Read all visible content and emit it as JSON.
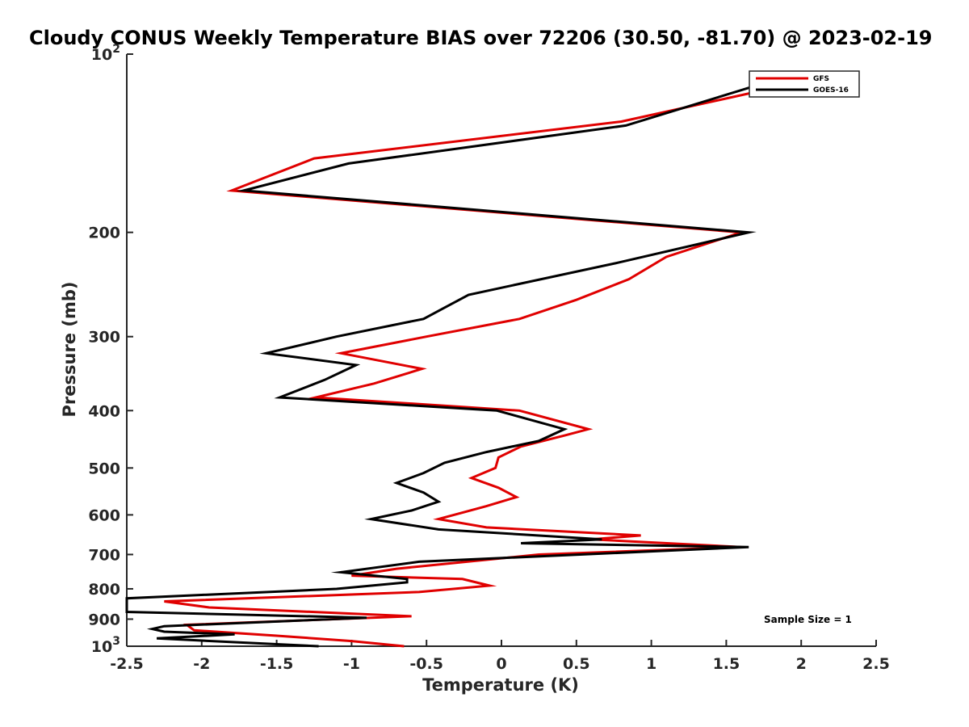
{
  "chart_data": {
    "type": "line",
    "title": "Cloudy CONUS Weekly Temperature BIAS over 72206 (30.50, -81.70) @ 2023-02-19",
    "xlabel": "Temperature (K)",
    "ylabel": "Pressure (mb)",
    "xlim": [
      -2.5,
      2.5
    ],
    "ylim": [
      1000,
      100
    ],
    "yscale": "log",
    "x_ticks": [
      -2.5,
      -2,
      -1.5,
      -1,
      -0.5,
      0,
      0.5,
      1,
      1.5,
      2,
      2.5
    ],
    "x_tick_labels": [
      "-2.5",
      "-2",
      "-1.5",
      "-1",
      "-0.5",
      "0",
      "0.5",
      "1",
      "1.5",
      "2",
      "2.5"
    ],
    "y_ticks": [
      {
        "value": 100,
        "label": "10",
        "sup": "2"
      },
      {
        "value": 200,
        "label": "200",
        "sup": ""
      },
      {
        "value": 300,
        "label": "300",
        "sup": ""
      },
      {
        "value": 400,
        "label": "400",
        "sup": ""
      },
      {
        "value": 500,
        "label": "500",
        "sup": ""
      },
      {
        "value": 600,
        "label": "600",
        "sup": ""
      },
      {
        "value": 700,
        "label": "700",
        "sup": ""
      },
      {
        "value": 800,
        "label": "800",
        "sup": ""
      },
      {
        "value": 900,
        "label": "900",
        "sup": ""
      },
      {
        "value": 1000,
        "label": "10",
        "sup": "3"
      }
    ],
    "grid": false,
    "legend_position": "top-right",
    "annotation": "Sample Size = 1",
    "series": [
      {
        "name": "GFS",
        "color": "#e00000",
        "points": [
          [
            2.1,
            110
          ],
          [
            0.8,
            130
          ],
          [
            -1.25,
            150
          ],
          [
            -1.8,
            170
          ],
          [
            1.6,
            200
          ],
          [
            1.1,
            220
          ],
          [
            0.85,
            240
          ],
          [
            0.5,
            260
          ],
          [
            0.12,
            280
          ],
          [
            -0.5,
            300
          ],
          [
            -1.07,
            320
          ],
          [
            -0.53,
            340
          ],
          [
            -0.85,
            360
          ],
          [
            -1.24,
            380
          ],
          [
            0.12,
            400
          ],
          [
            0.58,
            430
          ],
          [
            0.43,
            440
          ],
          [
            0.13,
            460
          ],
          [
            -0.02,
            480
          ],
          [
            -0.04,
            500
          ],
          [
            -0.2,
            520
          ],
          [
            -0.02,
            540
          ],
          [
            0.1,
            560
          ],
          [
            -0.1,
            580
          ],
          [
            -0.42,
            610
          ],
          [
            -0.1,
            630
          ],
          [
            0.93,
            650
          ],
          [
            0.6,
            660
          ],
          [
            1.6,
            680
          ],
          [
            0.25,
            700
          ],
          [
            -0.7,
            740
          ],
          [
            -1,
            760
          ],
          [
            -0.26,
            770
          ],
          [
            -0.08,
            790
          ],
          [
            -0.55,
            810
          ],
          [
            -2.25,
            840
          ],
          [
            -1.95,
            860
          ],
          [
            -0.6,
            890
          ],
          [
            -2.1,
            920
          ],
          [
            -2.05,
            940
          ],
          [
            -1.5,
            960
          ],
          [
            -1.0,
            980
          ],
          [
            -0.65,
            1000
          ]
        ]
      },
      {
        "name": "GOES-16",
        "color": "#000000",
        "points": [
          [
            1.75,
            112
          ],
          [
            0.83,
            132
          ],
          [
            -1.02,
            153
          ],
          [
            -1.72,
            170
          ],
          [
            1.65,
            200
          ],
          [
            0.78,
            225
          ],
          [
            -0.22,
            255
          ],
          [
            -0.52,
            280
          ],
          [
            -1.1,
            300
          ],
          [
            -1.57,
            320
          ],
          [
            -0.97,
            335
          ],
          [
            -1.18,
            355
          ],
          [
            -1.48,
            380
          ],
          [
            -0.03,
            400
          ],
          [
            0.42,
            430
          ],
          [
            0.25,
            450
          ],
          [
            -0.1,
            470
          ],
          [
            -0.38,
            490
          ],
          [
            -0.52,
            510
          ],
          [
            -0.7,
            530
          ],
          [
            -0.52,
            550
          ],
          [
            -0.42,
            570
          ],
          [
            -0.6,
            590
          ],
          [
            -0.87,
            610
          ],
          [
            -0.42,
            635
          ],
          [
            0.67,
            660
          ],
          [
            0.13,
            670
          ],
          [
            1.65,
            680
          ],
          [
            -0.55,
            720
          ],
          [
            -1.07,
            750
          ],
          [
            -0.63,
            770
          ],
          [
            -0.63,
            780
          ],
          [
            -1.1,
            800
          ],
          [
            -2.5,
            830
          ],
          [
            -2.5,
            875
          ],
          [
            -0.9,
            895
          ],
          [
            -2.25,
            925
          ],
          [
            -2.33,
            935
          ],
          [
            -2.25,
            945
          ],
          [
            -1.78,
            955
          ],
          [
            -2.3,
            970
          ],
          [
            -1.22,
            1000
          ]
        ]
      }
    ]
  }
}
